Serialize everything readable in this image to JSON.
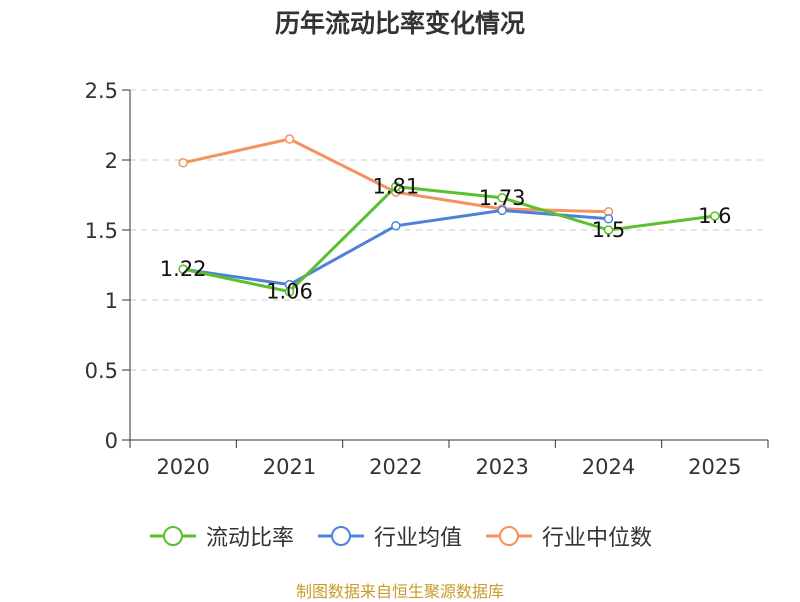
{
  "chart_data": {
    "type": "line",
    "title": "历年流动比率变化情况",
    "categories": [
      "2020",
      "2021",
      "2022",
      "2023",
      "2024",
      "2025"
    ],
    "y_ticks": [
      "0",
      "0.5",
      "1",
      "1.5",
      "2",
      "2.5"
    ],
    "ylim": [
      0,
      2.5
    ],
    "grid": true,
    "legend_position": "bottom",
    "series": [
      {
        "name": "流动比率",
        "color": "#5cbf2f",
        "values": [
          1.22,
          1.06,
          1.81,
          1.73,
          1.5,
          1.6
        ],
        "labels": [
          "1.22",
          "1.06",
          "1.81",
          "1.73",
          "1.5",
          "1.6"
        ]
      },
      {
        "name": "行业均值",
        "color": "#4f81d8",
        "values": [
          1.22,
          1.11,
          1.53,
          1.64,
          1.58,
          null
        ],
        "labels": []
      },
      {
        "name": "行业中位数",
        "color": "#f4935f",
        "values": [
          1.98,
          2.15,
          1.77,
          1.65,
          1.63,
          null
        ],
        "labels": []
      }
    ],
    "source": "制图数据来自恒生聚源数据库"
  }
}
